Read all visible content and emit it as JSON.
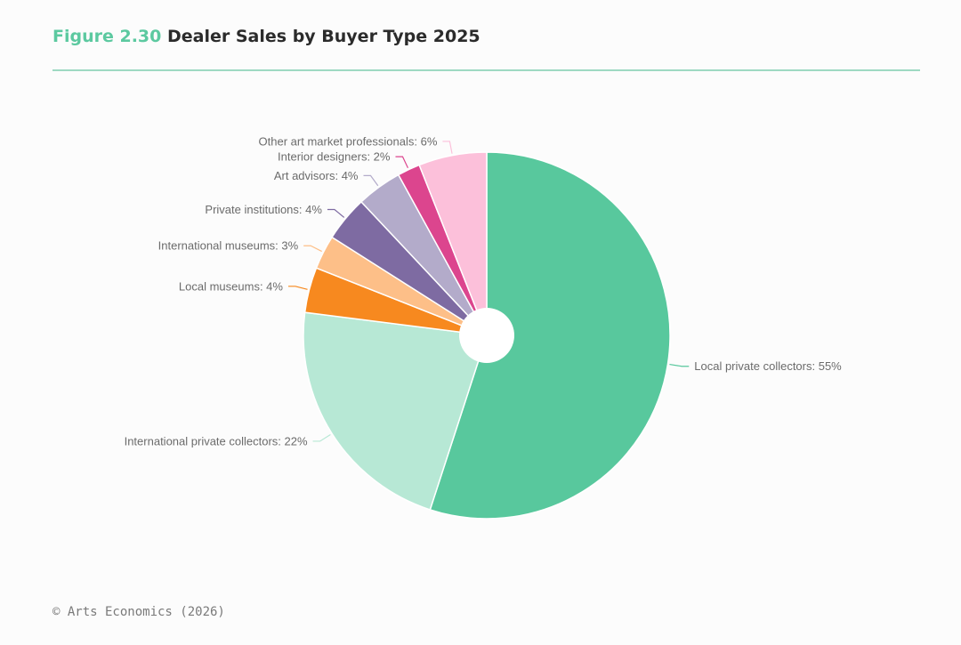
{
  "header": {
    "figure_number": "Figure 2.30",
    "title": "Dealer Sales by Buyer Type 2025"
  },
  "source": "© Arts Economics (2026)",
  "colors": {
    "accent": "#5cc9a0",
    "rule": "#9ed9c2",
    "label_text": "#6b6b6b"
  },
  "chart_data": {
    "type": "pie",
    "variant": "donut",
    "title": "Dealer Sales by Buyer Type 2025",
    "unit": "%",
    "slices": [
      {
        "label": "Local private collectors: 55%",
        "category": "Local private collectors",
        "value": 55,
        "color": "#58c89d"
      },
      {
        "label": "International private collectors: 22%",
        "category": "International private collectors",
        "value": 22,
        "color": "#b7e8d5"
      },
      {
        "label": "Local museums: 4%",
        "category": "Local museums",
        "value": 4,
        "color": "#f7891f"
      },
      {
        "label": "International museums: 3%",
        "category": "International museums",
        "value": 3,
        "color": "#fdbf88"
      },
      {
        "label": "Private institutions: 4%",
        "category": "Private institutions",
        "value": 4,
        "color": "#7e6ba2"
      },
      {
        "label": "Art advisors: 4%",
        "category": "Art advisors",
        "value": 4,
        "color": "#b3abca"
      },
      {
        "label": "Interior designers: 2%",
        "category": "Interior designers",
        "value": 2,
        "color": "#dc458e"
      },
      {
        "label": "Other art market professionals: 6%",
        "category": "Other art market professionals",
        "value": 6,
        "color": "#fcc0da"
      }
    ]
  }
}
